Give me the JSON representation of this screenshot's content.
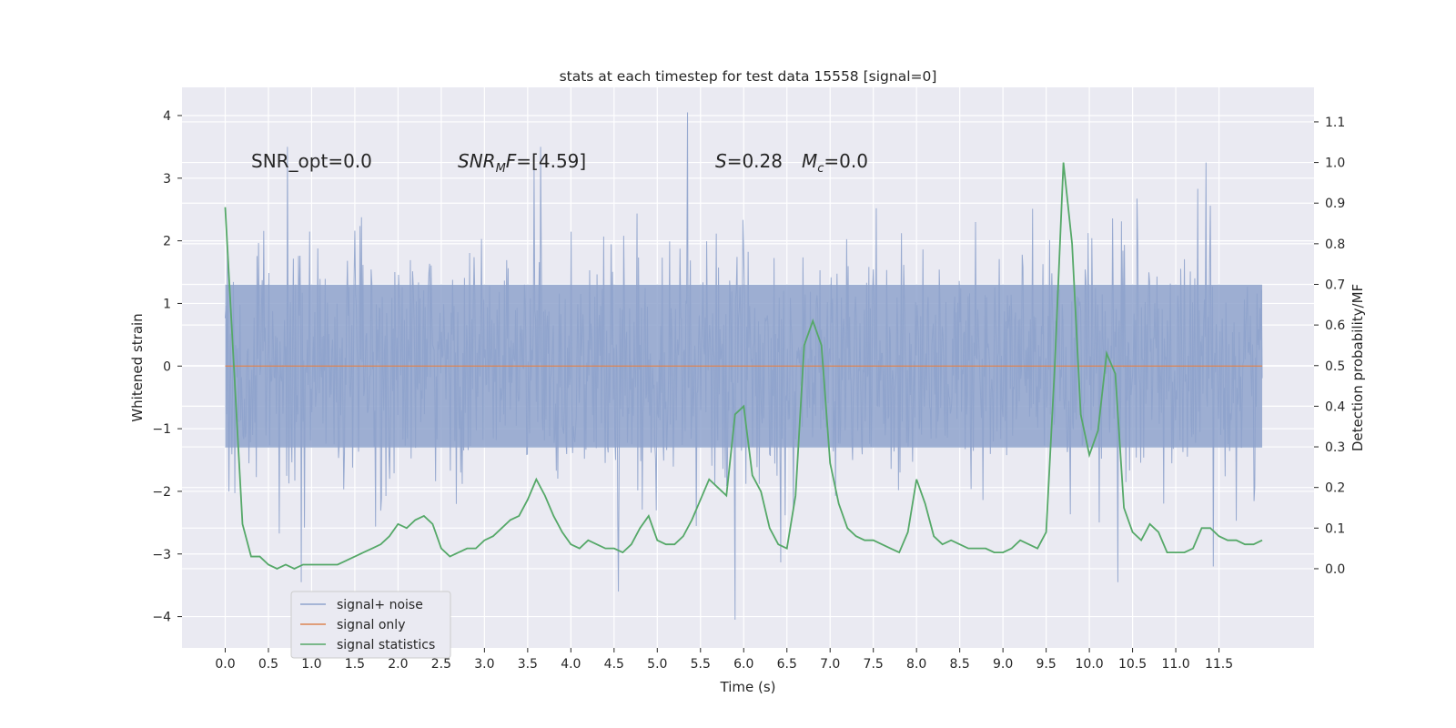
{
  "chart_data": {
    "type": "line",
    "title": "stats at each timestep for test data 15558 [signal=0]",
    "xlabel": "Time (s)",
    "ylabel_left": "Whitened strain",
    "ylabel_right": "Detection probability/MF",
    "xlim": [
      -0.5,
      12.6
    ],
    "ylim_left": [
      -4.5,
      4.45
    ],
    "ylim_right": [
      -0.195,
      1.185
    ],
    "x_ticks": [
      "0.0",
      "0.5",
      "1.0",
      "1.5",
      "2.0",
      "2.5",
      "3.0",
      "3.5",
      "4.0",
      "4.5",
      "5.0",
      "5.5",
      "6.0",
      "6.5",
      "7.0",
      "7.5",
      "8.0",
      "8.5",
      "9.0",
      "9.5",
      "10.0",
      "10.5",
      "11.0",
      "11.5"
    ],
    "y_left_ticks": [
      "4",
      "3",
      "2",
      "1",
      "0",
      "−1",
      "−2",
      "−3",
      "−4"
    ],
    "y_right_ticks": [
      "1.1",
      "1.0",
      "0.9",
      "0.8",
      "0.7",
      "0.6",
      "0.5",
      "0.4",
      "0.3",
      "0.2",
      "0.1",
      "0.0"
    ],
    "grid": true,
    "legend_placement": "lower-left",
    "annotations": {
      "snr_opt": "SNR_opt=0.0",
      "snr_mf_prefix": "SNR",
      "snr_mf_sub": "M",
      "snr_mf_suffix": "F=[4.59]",
      "s_label": "S",
      "s_value": "=0.28",
      "mc_label": "M",
      "mc_sub": "c",
      "mc_value": "=0.0"
    },
    "series": [
      {
        "name": "signal+ noise",
        "color": "#8fa3cc",
        "description_values": "noise-like strain, bulk within ±1.3, peaks to about ±3.5",
        "x_range": [
          0.0,
          12.0
        ],
        "peaks": [
          {
            "x": 0.72,
            "y": 3.5
          },
          {
            "x": 3.65,
            "y": 3.5
          },
          {
            "x": 5.35,
            "y": 4.05
          },
          {
            "x": 11.35,
            "y": 3.25
          },
          {
            "x": 5.9,
            "y": -4.05
          },
          {
            "x": 4.55,
            "y": -3.6
          },
          {
            "x": 0.88,
            "y": -3.45
          },
          {
            "x": 10.33,
            "y": -3.45
          }
        ]
      },
      {
        "name": "signal only",
        "color": "#dd8452",
        "x": [
          0.0,
          12.0
        ],
        "y": [
          0.0,
          0.0
        ]
      },
      {
        "name": "signal statistics",
        "color": "#55a868",
        "x": [
          0.0,
          0.1,
          0.2,
          0.3,
          0.4,
          0.5,
          0.6,
          0.7,
          0.8,
          0.9,
          1.0,
          1.1,
          1.2,
          1.3,
          1.4,
          1.5,
          1.6,
          1.7,
          1.8,
          1.9,
          2.0,
          2.1,
          2.2,
          2.3,
          2.4,
          2.5,
          2.6,
          2.7,
          2.8,
          2.9,
          3.0,
          3.1,
          3.2,
          3.3,
          3.4,
          3.5,
          3.6,
          3.7,
          3.8,
          3.9,
          4.0,
          4.1,
          4.2,
          4.3,
          4.4,
          4.5,
          4.6,
          4.7,
          4.8,
          4.9,
          5.0,
          5.1,
          5.2,
          5.3,
          5.4,
          5.5,
          5.6,
          5.7,
          5.8,
          5.9,
          6.0,
          6.1,
          6.2,
          6.3,
          6.4,
          6.5,
          6.6,
          6.7,
          6.8,
          6.9,
          7.0,
          7.1,
          7.2,
          7.3,
          7.4,
          7.5,
          7.6,
          7.7,
          7.8,
          7.9,
          8.0,
          8.1,
          8.2,
          8.3,
          8.4,
          8.5,
          8.6,
          8.7,
          8.8,
          8.9,
          9.0,
          9.1,
          9.2,
          9.3,
          9.4,
          9.5,
          9.6,
          9.7,
          9.8,
          9.9,
          10.0,
          10.1,
          10.2,
          10.3,
          10.4,
          10.5,
          10.6,
          10.7,
          10.8,
          10.9,
          11.0,
          11.1,
          11.2,
          11.3,
          11.4,
          11.5,
          11.6,
          11.7,
          11.8,
          11.9,
          12.0
        ],
        "y": [
          0.89,
          0.5,
          0.11,
          0.03,
          0.03,
          0.01,
          0.0,
          0.01,
          0.0,
          0.01,
          0.01,
          0.01,
          0.01,
          0.01,
          0.02,
          0.03,
          0.04,
          0.05,
          0.06,
          0.08,
          0.11,
          0.1,
          0.12,
          0.13,
          0.11,
          0.05,
          0.03,
          0.04,
          0.05,
          0.05,
          0.07,
          0.08,
          0.1,
          0.12,
          0.13,
          0.17,
          0.22,
          0.18,
          0.13,
          0.09,
          0.06,
          0.05,
          0.07,
          0.06,
          0.05,
          0.05,
          0.04,
          0.06,
          0.1,
          0.13,
          0.07,
          0.06,
          0.06,
          0.08,
          0.12,
          0.17,
          0.22,
          0.2,
          0.18,
          0.38,
          0.4,
          0.23,
          0.19,
          0.1,
          0.06,
          0.05,
          0.18,
          0.55,
          0.61,
          0.55,
          0.26,
          0.16,
          0.1,
          0.08,
          0.07,
          0.07,
          0.06,
          0.05,
          0.04,
          0.09,
          0.22,
          0.16,
          0.08,
          0.06,
          0.07,
          0.06,
          0.05,
          0.05,
          0.05,
          0.04,
          0.04,
          0.05,
          0.07,
          0.06,
          0.05,
          0.09,
          0.5,
          1.0,
          0.8,
          0.38,
          0.28,
          0.34,
          0.53,
          0.48,
          0.15,
          0.09,
          0.07,
          0.11,
          0.09,
          0.04,
          0.04,
          0.04,
          0.05,
          0.1,
          0.1,
          0.08,
          0.07,
          0.07,
          0.06,
          0.06,
          0.07
        ]
      }
    ]
  }
}
